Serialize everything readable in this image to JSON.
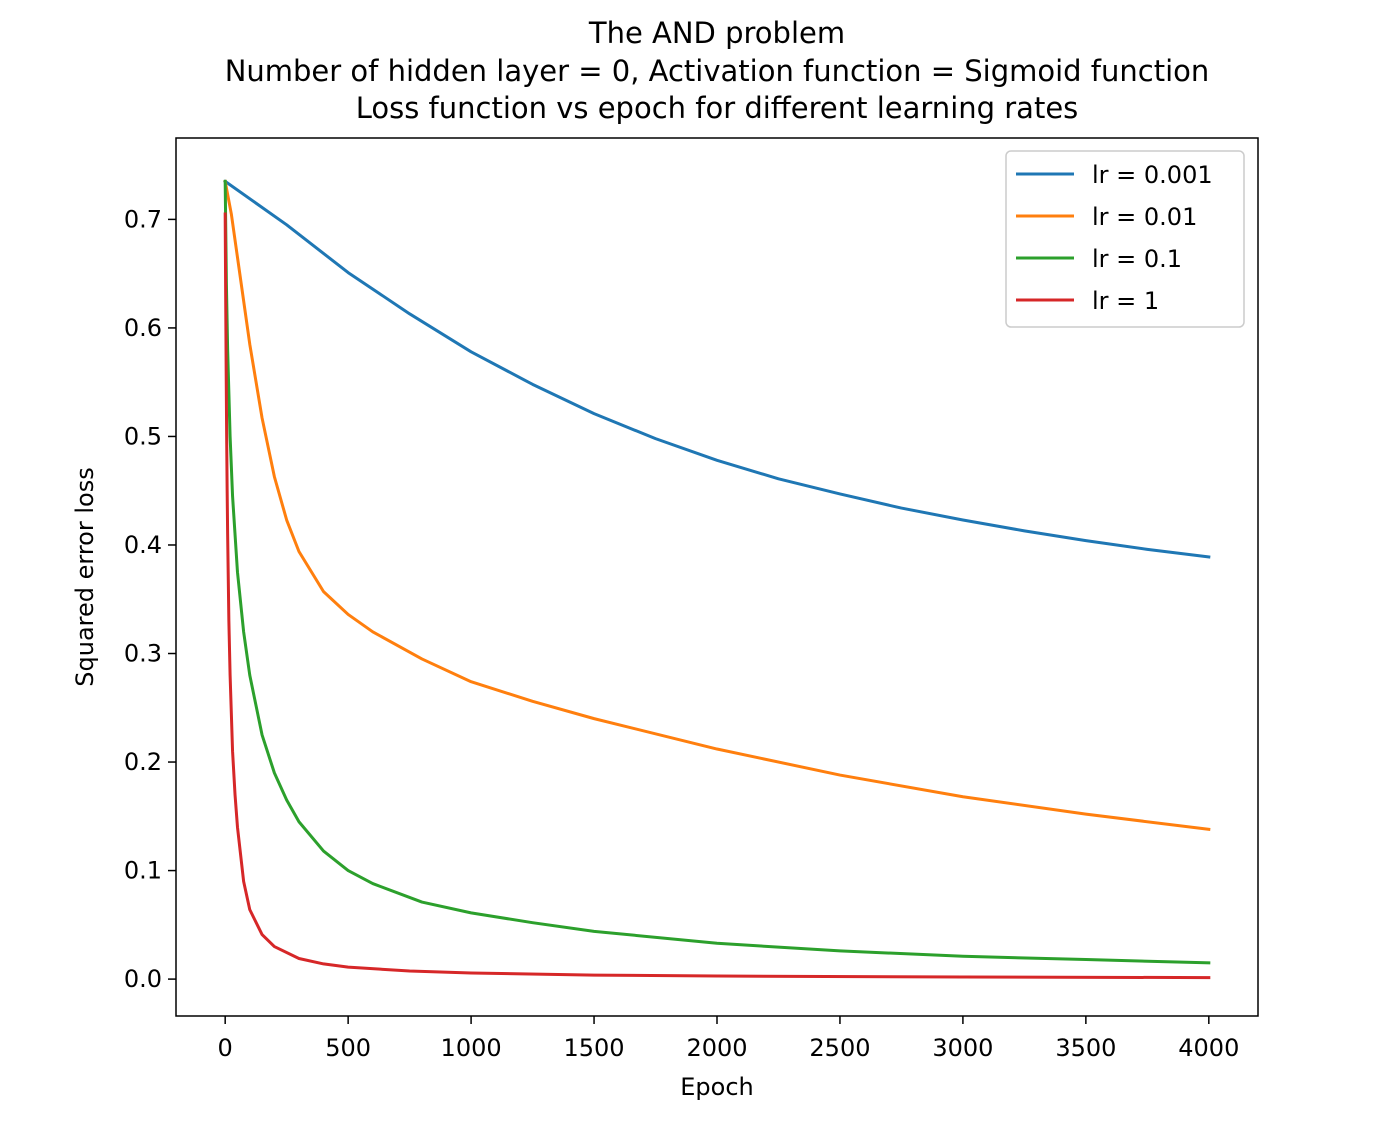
{
  "chart_data": {
    "type": "line",
    "title": [
      "The AND problem",
      "Number of hidden layer = 0, Activation function = Sigmoid function",
      "Loss function vs epoch for different learning rates"
    ],
    "xlabel": "Epoch",
    "ylabel": "Squared error loss",
    "xlim": [
      -200,
      4200
    ],
    "ylim": [
      -0.034,
      0.775
    ],
    "xticks": [
      0,
      500,
      1000,
      1500,
      2000,
      2500,
      3000,
      3500,
      4000
    ],
    "xtick_labels": [
      "0",
      "500",
      "1000",
      "1500",
      "2000",
      "2500",
      "3000",
      "3500",
      "4000"
    ],
    "yticks": [
      0.0,
      0.1,
      0.2,
      0.3,
      0.4,
      0.5,
      0.6,
      0.7
    ],
    "ytick_labels": [
      "0.0",
      "0.1",
      "0.2",
      "0.3",
      "0.4",
      "0.5",
      "0.6",
      "0.7"
    ],
    "grid": false,
    "legend_position": "top-right",
    "series": [
      {
        "name": "lr = 0.001",
        "color": "#1f77b4",
        "x": [
          0,
          250,
          500,
          750,
          1000,
          1250,
          1500,
          1750,
          2000,
          2250,
          2500,
          2750,
          3000,
          3250,
          3500,
          3750,
          4000
        ],
        "y": [
          0.735,
          0.695,
          0.651,
          0.613,
          0.578,
          0.548,
          0.521,
          0.498,
          0.478,
          0.461,
          0.447,
          0.434,
          0.423,
          0.413,
          0.404,
          0.396,
          0.389
        ]
      },
      {
        "name": "lr = 0.01",
        "color": "#ff7f0e",
        "x": [
          0,
          25,
          50,
          100,
          150,
          200,
          250,
          300,
          400,
          500,
          600,
          800,
          1000,
          1250,
          1500,
          2000,
          2500,
          3000,
          3500,
          4000
        ],
        "y": [
          0.735,
          0.705,
          0.665,
          0.585,
          0.517,
          0.463,
          0.423,
          0.394,
          0.357,
          0.336,
          0.32,
          0.295,
          0.274,
          0.256,
          0.24,
          0.212,
          0.188,
          0.168,
          0.152,
          0.138
        ]
      },
      {
        "name": "lr = 0.1",
        "color": "#2ca02c",
        "x": [
          0,
          5,
          10,
          20,
          30,
          50,
          75,
          100,
          150,
          200,
          250,
          300,
          400,
          500,
          600,
          800,
          1000,
          1250,
          1500,
          2000,
          2500,
          3000,
          3500,
          4000
        ],
        "y": [
          0.735,
          0.64,
          0.58,
          0.5,
          0.445,
          0.375,
          0.32,
          0.28,
          0.225,
          0.19,
          0.165,
          0.145,
          0.118,
          0.1,
          0.088,
          0.071,
          0.061,
          0.052,
          0.044,
          0.033,
          0.026,
          0.021,
          0.018,
          0.015
        ]
      },
      {
        "name": "lr = 1",
        "color": "#d62728",
        "x": [
          0,
          2,
          4,
          6,
          8,
          10,
          15,
          20,
          30,
          40,
          50,
          75,
          100,
          150,
          200,
          300,
          400,
          500,
          750,
          1000,
          1500,
          2000,
          3000,
          4000
        ],
        "y": [
          0.705,
          0.63,
          0.56,
          0.5,
          0.45,
          0.41,
          0.33,
          0.28,
          0.21,
          0.17,
          0.14,
          0.09,
          0.064,
          0.041,
          0.03,
          0.019,
          0.014,
          0.011,
          0.0075,
          0.0056,
          0.0037,
          0.0028,
          0.0019,
          0.0014
        ]
      }
    ]
  }
}
